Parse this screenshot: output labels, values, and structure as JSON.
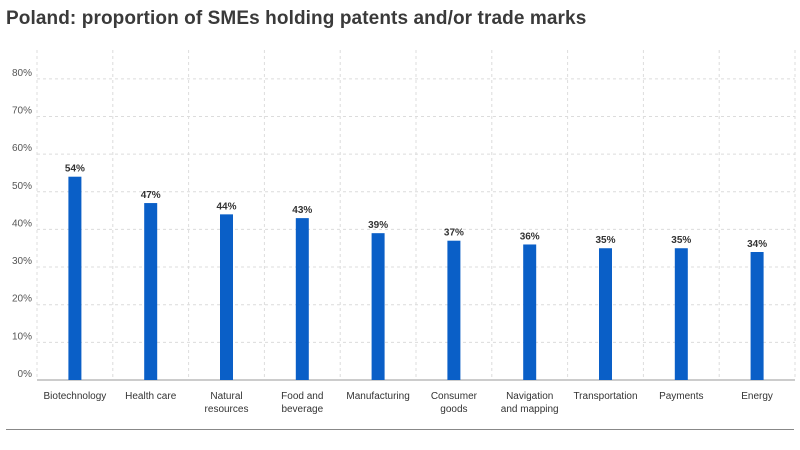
{
  "chart_data": {
    "type": "bar",
    "title": "Poland: proportion of SMEs holding patents and/or trade marks",
    "xlabel": "",
    "ylabel": "",
    "ylim": [
      0,
      85
    ],
    "yticks": [
      0,
      10,
      20,
      30,
      40,
      50,
      60,
      70,
      80
    ],
    "ytick_labels": [
      "0%",
      "10%",
      "20%",
      "30%",
      "40%",
      "50%",
      "60%",
      "70%",
      "80%"
    ],
    "categories": [
      [
        "Biotechnology"
      ],
      [
        "Health care"
      ],
      [
        "Natural",
        "resources"
      ],
      [
        "Food and",
        "beverage"
      ],
      [
        "Manufacturing"
      ],
      [
        "Consumer",
        "goods"
      ],
      [
        "Navigation",
        "and mapping"
      ],
      [
        "Transportation"
      ],
      [
        "Payments"
      ],
      [
        "Energy"
      ]
    ],
    "values": [
      54,
      47,
      44,
      43,
      39,
      37,
      36,
      35,
      35,
      34
    ],
    "data_labels": [
      "54%",
      "47%",
      "44%",
      "43%",
      "39%",
      "37%",
      "36%",
      "35%",
      "35%",
      "34%"
    ],
    "grid": true,
    "legend": "none",
    "colors": {
      "bar": "#0a5fc7",
      "grid": "#dcdcdc",
      "axis": "#999999"
    }
  }
}
